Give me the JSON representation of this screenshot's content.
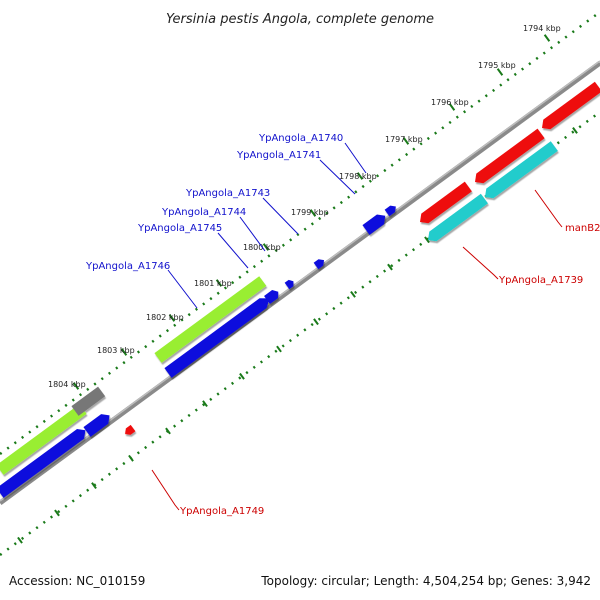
{
  "title": "Yersinia pestis Angola, complete genome",
  "footer": {
    "accession": "Accession: NC_010159",
    "summary": "Topology: circular; Length: 4,504,254 bp; Genes: 3,942"
  },
  "ticks": [
    {
      "label": "1794 kbp"
    },
    {
      "label": "1795 kbp"
    },
    {
      "label": "1796 kbp"
    },
    {
      "label": "1797 kbp"
    },
    {
      "label": "1798 kbp"
    },
    {
      "label": "1799 kbp"
    },
    {
      "label": "1800 kbp"
    },
    {
      "label": "1801 kbp"
    },
    {
      "label": "1802 kbp"
    },
    {
      "label": "1803 kbp"
    },
    {
      "label": "1804 kbp"
    }
  ],
  "gene_labels": {
    "a1740": "YpAngola_A1740",
    "a1741": "YpAngola_A1741",
    "a1743": "YpAngola_A1743",
    "a1744": "YpAngola_A1744",
    "a1745": "YpAngola_A1745",
    "a1746": "YpAngola_A1746",
    "man82": "manB2",
    "a1739": "YpAngola_A1739",
    "a1749": "YpAngola_A1749"
  },
  "colors": {
    "backbone": "#808080",
    "ruler": "#1a7a1a",
    "forward_gene": "#ee1111",
    "reverse_gene": "#1111dd",
    "cds_green": "#99ee33",
    "cds_cyan": "#22cccc",
    "pseudo_gray": "#777777",
    "label_blue": "#1111cc",
    "label_red": "#cc0000"
  }
}
